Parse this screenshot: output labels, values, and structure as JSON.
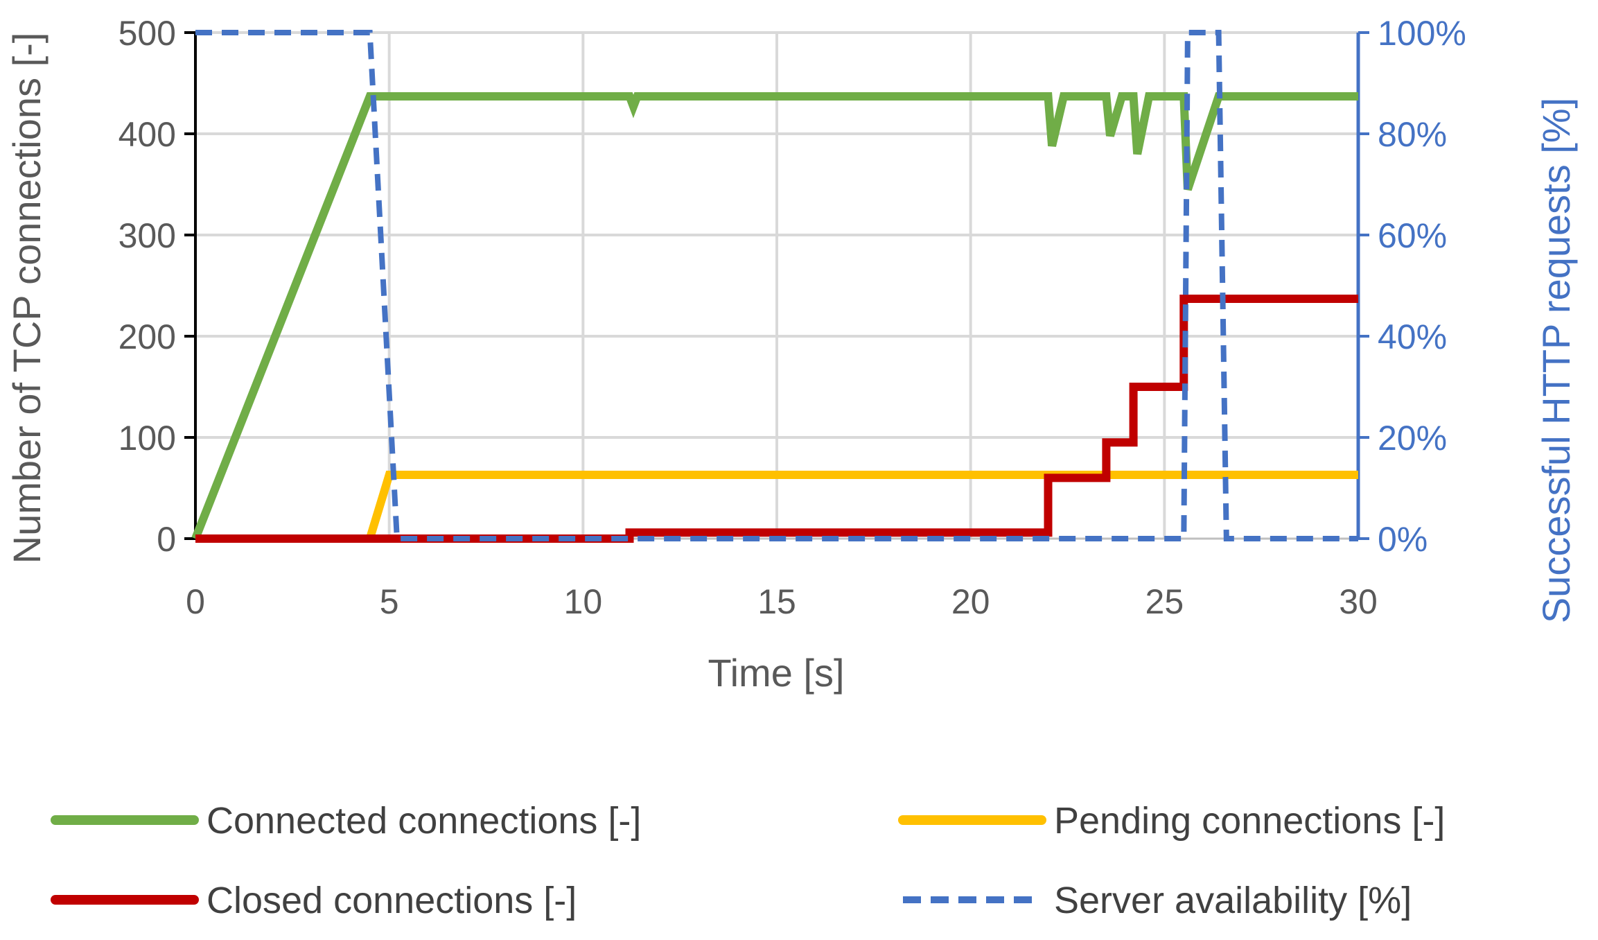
{
  "chart_data": {
    "type": "line",
    "title": "",
    "xlabel": "Time [s]",
    "ylabel": "Number of TCP connections [-]",
    "y2label": "Successful HTTP requests [%]",
    "xlim": [
      0,
      30
    ],
    "ylim": [
      0,
      500
    ],
    "y2lim": [
      0,
      100
    ],
    "x_ticks": [
      "0",
      "5",
      "10",
      "15",
      "20",
      "25",
      "30"
    ],
    "x_tick_values": [
      0,
      5,
      10,
      15,
      20,
      25,
      30
    ],
    "y_ticks": [
      "0",
      "100",
      "200",
      "300",
      "400",
      "500"
    ],
    "y_tick_values": [
      0,
      100,
      200,
      300,
      400,
      500
    ],
    "y2_ticks": [
      "0%",
      "20%",
      "40%",
      "60%",
      "80%",
      "100%"
    ],
    "y2_tick_values": [
      0,
      20,
      40,
      60,
      80,
      100
    ],
    "grid": true,
    "legend_position": "bottom",
    "series": [
      {
        "name": "Connected connections [-]",
        "axis": "left",
        "style": "solid",
        "color": "#70AD47",
        "x": [
          0,
          4.5,
          5.0,
          11.2,
          11.3,
          11.4,
          22.0,
          22.1,
          22.4,
          23.5,
          23.6,
          23.9,
          24.2,
          24.3,
          24.6,
          25.5,
          25.6,
          26.4,
          30
        ],
        "y": [
          0,
          437,
          437,
          437,
          427,
          437,
          437,
          388,
          437,
          437,
          398,
          437,
          437,
          380,
          437,
          437,
          345,
          437,
          437
        ]
      },
      {
        "name": "Pending connections [-]",
        "axis": "left",
        "style": "solid",
        "color": "#FFC000",
        "x": [
          0,
          4.5,
          5.0,
          30
        ],
        "y": [
          0,
          0,
          63,
          63
        ]
      },
      {
        "name": "Closed connections [-]",
        "axis": "left",
        "style": "solid",
        "color": "#C00000",
        "x": [
          0,
          11.2,
          11.2,
          22.0,
          22.0,
          23.5,
          23.5,
          24.2,
          24.2,
          25.5,
          25.5,
          30
        ],
        "y": [
          0,
          0,
          6,
          6,
          60,
          60,
          95,
          95,
          150,
          150,
          237,
          237
        ]
      },
      {
        "name": "Server availability [%]",
        "axis": "right",
        "style": "dashed",
        "color": "#4472C4",
        "x": [
          0,
          4.5,
          5.2,
          25.5,
          25.6,
          26.4,
          26.6,
          30
        ],
        "y": [
          100,
          100,
          0,
          0,
          100,
          100,
          0,
          0
        ]
      }
    ]
  }
}
